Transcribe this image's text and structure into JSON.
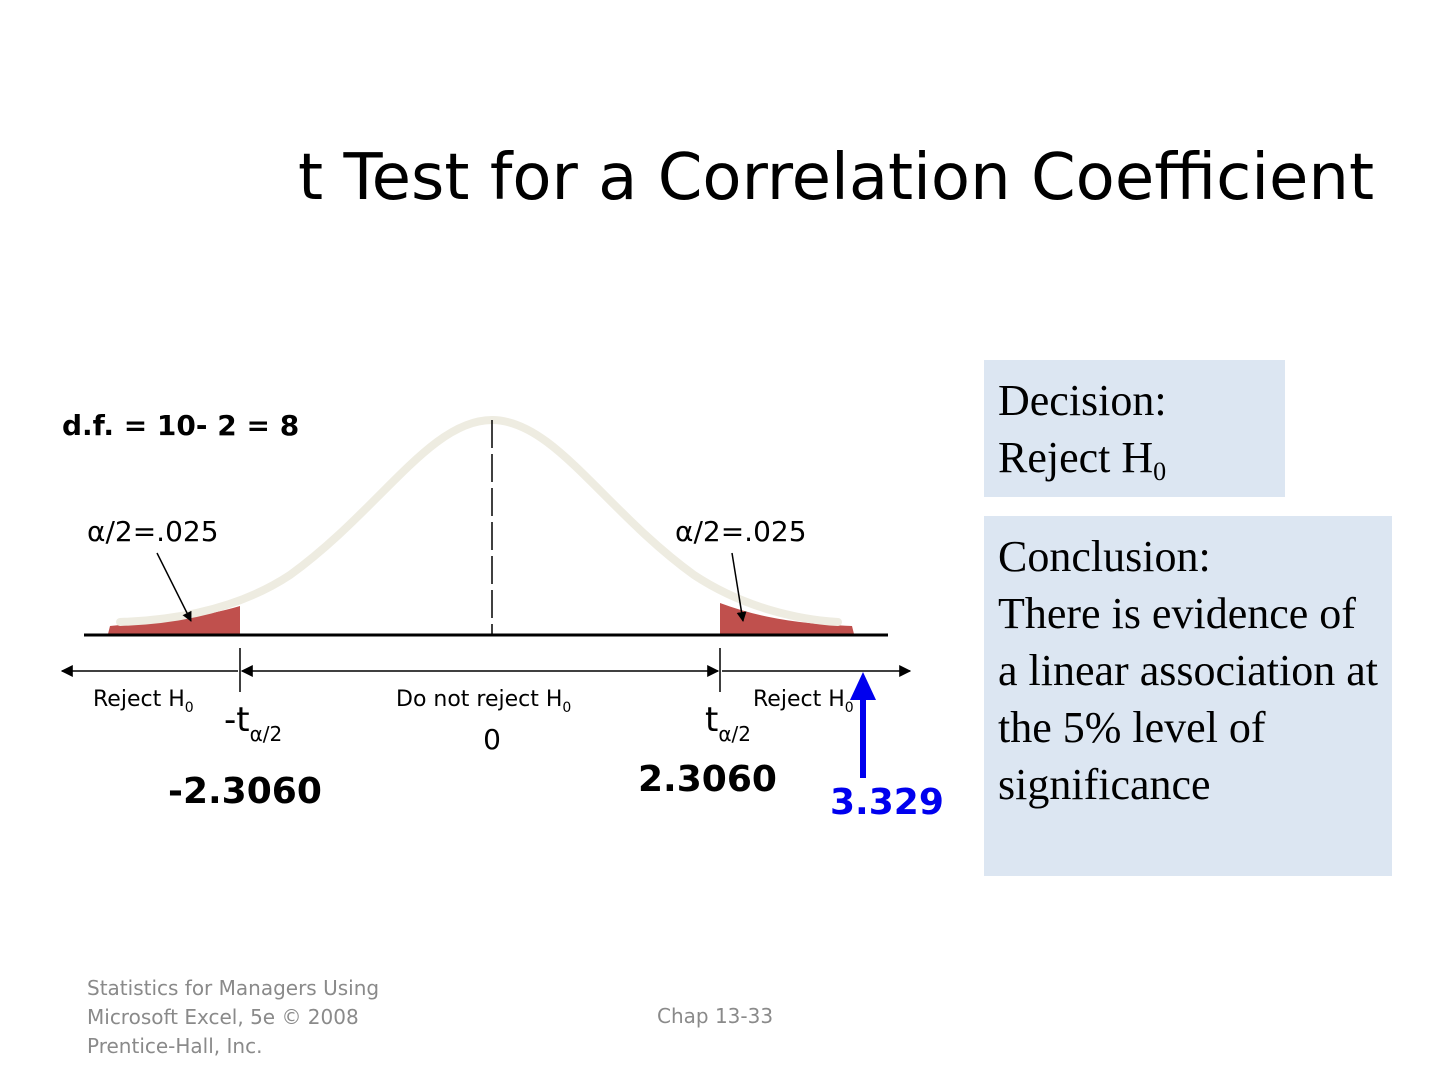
{
  "slide": {
    "title": "t Test for a Correlation Coefficient"
  },
  "diagram": {
    "df_text": "d.f. = 10- 2 = 8",
    "alpha_left": "α/2=.025",
    "alpha_right": "α/2=.025",
    "reject_left": "Reject H",
    "do_not_reject": "Do not reject H",
    "reject_right": "Reject H",
    "subscript_zero": "0",
    "neg_t_prefix": "-t",
    "t_prefix": "t",
    "t_subscript": "α/2",
    "center_value": "0",
    "left_critical": "-2.3060",
    "right_critical": "2.3060",
    "test_statistic": "3.329",
    "colors": {
      "rejection_region": "#c0504d",
      "curve": "#eeece1",
      "arrow_test_stat": "#0000ee"
    }
  },
  "decision": {
    "label": "Decision:",
    "text": "Reject H",
    "subscript": "0"
  },
  "conclusion": {
    "label": "Conclusion:",
    "text": "There is evidence of a linear association at the 5% level of significance"
  },
  "footer": {
    "left": "Statistics for Managers Using Microsoft Excel, 5e © 2008 Prentice-Hall, Inc.",
    "center": "Chap 13-33"
  }
}
